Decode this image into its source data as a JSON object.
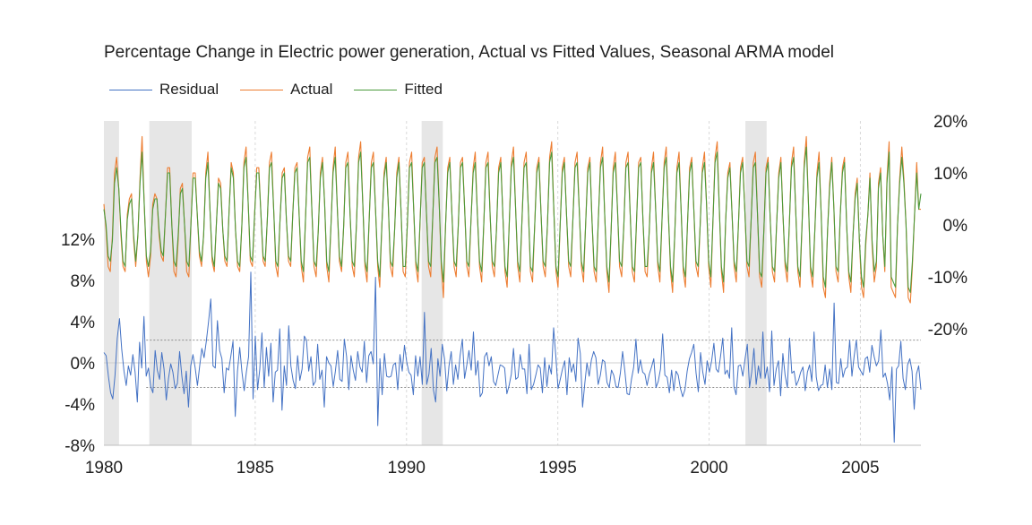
{
  "chart_data": {
    "type": "line",
    "title": "Percentage Change in Electric power generation, Actual vs Fitted Values, Seasonal ARMA model",
    "x_range": [
      1980,
      2007
    ],
    "x_ticks": [
      "1980",
      "1985",
      "1990",
      "1995",
      "2000",
      "2005"
    ],
    "left_axis": {
      "ticks": [
        "-8%",
        "-4%",
        "0%",
        "4%",
        "8%",
        "12%"
      ],
      "values": [
        -8,
        -4,
        0,
        4,
        8,
        12
      ],
      "range": [
        -8,
        12
      ]
    },
    "right_axis": {
      "ticks": [
        "-20%",
        "-10%",
        "0%",
        "10%",
        "20%"
      ],
      "values": [
        -20,
        -10,
        0,
        10,
        20
      ],
      "range": [
        -20,
        20
      ]
    },
    "recessions": [
      [
        1980.0,
        1980.5
      ],
      [
        1981.5,
        1982.9
      ],
      [
        1990.5,
        1991.2
      ],
      [
        2001.2,
        2001.9
      ]
    ],
    "residual_bands": [
      2.2,
      -2.4
    ],
    "legend_position": "top-left",
    "series": [
      {
        "name": "Residual",
        "axis": "left",
        "color": "#4472c4",
        "values": [
          1.0,
          0.7,
          -1.3,
          -2.9,
          -3.5,
          -1.2,
          2.4,
          4.3,
          1.3,
          -0.8,
          -2.2,
          -0.3,
          -1.2,
          0.8,
          -0.9,
          -3.8,
          2.0,
          -0.5,
          4.5,
          -1.3,
          -0.5,
          -2.3,
          -2.9,
          1.2,
          -0.7,
          -1.6,
          1.0,
          -0.6,
          -3.6,
          -1.5,
          -0.1,
          -0.9,
          -2.5,
          -2.0,
          1.1,
          -1.3,
          -3.0,
          -0.8,
          -4.3,
          -0.3,
          0.8,
          -0.5,
          -2.2,
          -0.3,
          1.4,
          0.5,
          2.1,
          4.0,
          6.2,
          -0.3,
          -0.5,
          4.1,
          1.2,
          0.4,
          -2.9,
          -0.5,
          -0.7,
          0.6,
          2.1,
          -5.2,
          -0.8,
          1.5,
          -0.9,
          -2.7,
          -0.9,
          0.6,
          8.8,
          -3.5,
          2.6,
          -2.6,
          -0.6,
          2.9,
          -2.4,
          1.5,
          -1.3,
          1.9,
          -3.8,
          -0.9,
          -0.7,
          3.3,
          -4.6,
          -0.3,
          -2.2,
          3.6,
          -0.3,
          -1.7,
          -2.5,
          0.7,
          -1.7,
          -0.6,
          2.6,
          2.2,
          -0.8,
          0.6,
          -2.2,
          -1.8,
          1.8,
          -1.6,
          -0.7,
          -4.3,
          0.6,
          0.0,
          -0.3,
          -2.3,
          -0.8,
          1.2,
          -1.6,
          -1.8,
          2.3,
          0.6,
          -2.6,
          0.7,
          -0.7,
          -1.7,
          1.1,
          -0.4,
          -0.9,
          2.1,
          -1.9,
          0.7,
          1.1,
          -0.1,
          8.3,
          -6.1,
          0.4,
          -3.1,
          0.9,
          -1.3,
          -1.4,
          -1.3,
          -0.2,
          0.0,
          -2.6,
          0.8,
          -0.8,
          1.7,
          0.1,
          -0.9,
          -1.2,
          -3.1,
          0.7,
          -1.3,
          0.6,
          -2.1,
          4.9,
          -2.1,
          -1.1,
          1.4,
          -2.6,
          -3.8,
          0.4,
          -1.3,
          1.8,
          0.4,
          -2.7,
          -0.3,
          1.1,
          -2.1,
          -0.2,
          -1.6,
          0.7,
          2.3,
          -1.5,
          -0.2,
          1.2,
          -0.7,
          3.0,
          -1.2,
          0.2,
          -3.3,
          -2.9,
          0.6,
          1.0,
          -0.3,
          0.6,
          -1.8,
          -2.2,
          -1.2,
          -0.2,
          -0.3,
          -0.5,
          -3.0,
          -2.2,
          -1.1,
          1.4,
          -1.6,
          -1.4,
          0.8,
          -0.6,
          -0.6,
          -3.0,
          1.8,
          -2.6,
          -2.1,
          -1.2,
          -0.2,
          -0.5,
          -2.9,
          0.5,
          -2.3,
          -0.2,
          -1.1,
          3.4,
          0.6,
          -2.5,
          -1.6,
          -0.6,
          0.2,
          -3.1,
          0.5,
          -0.9,
          -0.1,
          -1.8,
          2.4,
          0.9,
          -4.3,
          -2.0,
          0.0,
          -1.3,
          0.3,
          1.1,
          0.5,
          -2.1,
          -1.2,
          0.3,
          0.1,
          -1.9,
          -2.4,
          -0.7,
          -1.2,
          -2.3,
          -2.4,
          -1.0,
          1.1,
          -0.8,
          -3.0,
          -3.1,
          -1.6,
          -0.4,
          2.3,
          -1.0,
          0.3,
          -0.9,
          -1.1,
          -2.2,
          -1.1,
          -0.4,
          0.4,
          -2.4,
          -1.8,
          -0.6,
          2.8,
          -1.2,
          -1.4,
          -2.9,
          -0.7,
          -2.7,
          -0.8,
          -1.2,
          -2.5,
          -3.3,
          -2.6,
          -0.8,
          0.4,
          1.0,
          1.8,
          -1.0,
          -2.8,
          1.0,
          -0.9,
          -2.1,
          0.2,
          -0.9,
          0.2,
          1.9,
          -0.6,
          -0.9,
          0.6,
          2.4,
          -1.1,
          -0.7,
          -1.5,
          3.4,
          -2.3,
          -3.1,
          -0.3,
          -0.2,
          -1.3,
          0.4,
          1.8,
          -2.4,
          -0.9,
          1.4,
          -2.1,
          -0.3,
          -1.5,
          3.0,
          -1.5,
          -0.4,
          -2.8,
          3.1,
          -2.2,
          -0.6,
          0.2,
          -3.2,
          0.9,
          -1.2,
          -2.4,
          2.4,
          -1.0,
          -0.8,
          -2.2,
          -1.7,
          -0.9,
          -0.4,
          -2.7,
          -0.9,
          -0.2,
          -1.8,
          3.0,
          -1.4,
          -2.7,
          -2.2,
          -2.1,
          -0.2,
          -2.4,
          -0.6,
          -2.6,
          5.8,
          -1.9,
          -2.0,
          0.4,
          -1.4,
          -0.6,
          -0.4,
          2.2,
          -1.3,
          0.6,
          2.2,
          -0.4,
          -0.8,
          -1.2,
          0.4,
          0.6,
          -0.9,
          1.7,
          0.6,
          -0.3,
          0.2,
          3.2,
          -1.4,
          -1.0,
          -2.0,
          -3.6,
          -0.4,
          -7.7,
          -0.6,
          -0.3,
          2.1,
          -1.5,
          -2.6,
          -0.2,
          0.4,
          -0.8,
          -4.5,
          -1.1,
          -0.3,
          -2.6
        ]
      },
      {
        "name": "Actual",
        "axis": "right",
        "color": "#ed7d31",
        "values": [
          4,
          -1,
          -8,
          -9,
          -2,
          10,
          13,
          7,
          -2,
          -8,
          -9,
          2,
          5,
          6,
          -3,
          -8,
          -2,
          9,
          17,
          4,
          -7,
          -10,
          -6,
          4,
          6,
          5,
          -2,
          -6,
          -7,
          2,
          11,
          11,
          0,
          -9,
          -10,
          -3,
          7,
          8,
          0,
          -9,
          -10,
          0,
          10,
          10,
          2,
          -6,
          -8,
          -2,
          10,
          14,
          3,
          -7,
          -9,
          0,
          9,
          8,
          -1,
          -7,
          -8,
          3,
          12,
          10,
          -1,
          -8,
          -9,
          0,
          12,
          15,
          4,
          -7,
          -8,
          2,
          11,
          11,
          2,
          -7,
          -8,
          1,
          12,
          14,
          3,
          -8,
          -10,
          1,
          10,
          11,
          1,
          -7,
          -8,
          2,
          11,
          12,
          2,
          -8,
          -11,
          1,
          13,
          15,
          3,
          -8,
          -10,
          -1,
          10,
          13,
          4,
          -8,
          -11,
          0,
          11,
          15,
          3,
          -7,
          -9,
          0,
          12,
          14,
          2,
          -8,
          -10,
          0,
          13,
          16,
          4,
          -8,
          -11,
          1,
          12,
          14,
          3,
          -8,
          -12,
          0,
          10,
          13,
          4,
          -8,
          -10,
          -1,
          10,
          13,
          3,
          -9,
          -10,
          0,
          12,
          14,
          3,
          -8,
          -11,
          1,
          12,
          13,
          2,
          -8,
          -10,
          2,
          13,
          15,
          4,
          -8,
          -14,
          0,
          11,
          13,
          2,
          -8,
          -10,
          0,
          12,
          13,
          3,
          -8,
          -10,
          1,
          11,
          14,
          2,
          -8,
          -11,
          0,
          12,
          14,
          2,
          -8,
          -10,
          -1,
          11,
          13,
          2,
          -9,
          -12,
          0,
          12,
          15,
          3,
          -8,
          -11,
          1,
          12,
          14,
          3,
          -9,
          -11,
          0,
          11,
          13,
          2,
          -8,
          -10,
          0,
          13,
          16,
          3,
          -9,
          -12,
          0,
          11,
          13,
          2,
          -8,
          -10,
          1,
          12,
          14,
          3,
          -8,
          -11,
          0,
          11,
          13,
          1,
          -9,
          -11,
          1,
          12,
          15,
          2,
          -9,
          -13,
          -1,
          11,
          14,
          3,
          -8,
          -10,
          0,
          12,
          14,
          2,
          -9,
          -11,
          1,
          12,
          13,
          1,
          -9,
          -10,
          -1,
          11,
          14,
          3,
          -8,
          -11,
          1,
          12,
          15,
          2,
          -9,
          -13,
          -2,
          11,
          14,
          3,
          -9,
          -12,
          0,
          11,
          13,
          3,
          -8,
          -10,
          0,
          11,
          14,
          4,
          -8,
          -12,
          1,
          13,
          16,
          3,
          -9,
          -13,
          1,
          10,
          12,
          2,
          -8,
          -11,
          0,
          11,
          13,
          3,
          -8,
          -10,
          1,
          12,
          14,
          2,
          -10,
          -12,
          -1,
          11,
          13,
          1,
          -9,
          -11,
          0,
          10,
          13,
          2,
          -8,
          -11,
          0,
          12,
          15,
          3,
          -9,
          -12,
          0,
          12,
          17,
          4,
          -9,
          -12,
          -1,
          10,
          14,
          2,
          -12,
          -14,
          -1,
          8,
          13,
          3,
          -9,
          -11,
          2,
          11,
          13,
          0,
          -10,
          -13,
          -2,
          6,
          9,
          -3,
          -12,
          -14,
          -4,
          2,
          10,
          -4,
          -11,
          -8,
          8,
          11,
          -2,
          -9,
          9,
          16,
          -12,
          -13,
          -14,
          0,
          9,
          15,
          9,
          0,
          -14,
          -15,
          -8,
          2,
          12,
          3,
          3
        ]
      },
      {
        "name": "Fitted",
        "axis": "right",
        "color": "#4a9a3b",
        "values": [
          3,
          0,
          -6,
          -7,
          -3,
          8,
          11,
          7,
          -1,
          -7,
          -8,
          1,
          4,
          5,
          -2,
          -7,
          -2,
          8,
          14,
          4,
          -6,
          -8,
          -5,
          3,
          5,
          5,
          -1,
          -5,
          -6,
          2,
          10,
          10,
          0,
          -7,
          -8,
          -2,
          6,
          7,
          0,
          -7,
          -8,
          0,
          9,
          9,
          2,
          -5,
          -7,
          -2,
          9,
          12,
          3,
          -6,
          -8,
          0,
          8,
          7,
          -1,
          -6,
          -7,
          3,
          11,
          9,
          -1,
          -7,
          -8,
          0,
          11,
          13,
          4,
          -6,
          -7,
          2,
          10,
          10,
          2,
          -6,
          -7,
          1,
          11,
          12,
          3,
          -7,
          -8,
          1,
          9,
          10,
          1,
          -6,
          -7,
          2,
          10,
          11,
          2,
          -7,
          -9,
          1,
          12,
          13,
          3,
          -7,
          -8,
          -1,
          9,
          12,
          4,
          -7,
          -9,
          0,
          10,
          13,
          3,
          -6,
          -8,
          0,
          11,
          12,
          2,
          -7,
          -8,
          0,
          12,
          14,
          4,
          -7,
          -9,
          1,
          11,
          12,
          3,
          -7,
          -10,
          0,
          9,
          12,
          4,
          -7,
          -8,
          -1,
          9,
          12,
          3,
          -8,
          -8,
          0,
          11,
          12,
          3,
          -7,
          -9,
          1,
          11,
          12,
          2,
          -7,
          -8,
          2,
          12,
          13,
          4,
          -7,
          -11,
          0,
          10,
          12,
          2,
          -7,
          -8,
          0,
          11,
          12,
          3,
          -7,
          -8,
          1,
          10,
          12,
          2,
          -7,
          -9,
          0,
          11,
          12,
          2,
          -7,
          -8,
          -1,
          10,
          12,
          2,
          -8,
          -10,
          0,
          11,
          13,
          3,
          -7,
          -9,
          1,
          11,
          12,
          3,
          -8,
          -9,
          0,
          10,
          12,
          2,
          -7,
          -8,
          0,
          12,
          14,
          3,
          -8,
          -10,
          0,
          10,
          12,
          2,
          -7,
          -8,
          1,
          11,
          12,
          3,
          -7,
          -9,
          0,
          10,
          12,
          1,
          -8,
          -9,
          1,
          11,
          13,
          2,
          -8,
          -11,
          -1,
          10,
          12,
          3,
          -7,
          -8,
          0,
          11,
          12,
          2,
          -8,
          -9,
          1,
          11,
          12,
          1,
          -8,
          -8,
          -1,
          10,
          12,
          3,
          -7,
          -9,
          1,
          11,
          13,
          2,
          -8,
          -11,
          -2,
          10,
          12,
          3,
          -8,
          -10,
          0,
          10,
          12,
          3,
          -7,
          -8,
          0,
          10,
          12,
          4,
          -7,
          -10,
          1,
          12,
          14,
          3,
          -8,
          -11,
          1,
          9,
          11,
          2,
          -7,
          -9,
          0,
          10,
          12,
          3,
          -7,
          -8,
          1,
          11,
          12,
          2,
          -9,
          -10,
          -1,
          10,
          12,
          1,
          -8,
          -9,
          0,
          9,
          12,
          2,
          -7,
          -9,
          0,
          11,
          13,
          3,
          -8,
          -10,
          0,
          11,
          15,
          4,
          -8,
          -10,
          -1,
          9,
          12,
          2,
          -10,
          -12,
          -1,
          7,
          12,
          3,
          -8,
          -9,
          2,
          10,
          12,
          0,
          -9,
          -11,
          -2,
          5,
          8,
          -3,
          -10,
          -12,
          -3,
          2,
          9,
          -3,
          -9,
          -7,
          7,
          10,
          -2,
          -8,
          8,
          14,
          -10,
          -11,
          -12,
          0,
          8,
          13,
          8,
          0,
          -12,
          -13,
          -7,
          2,
          10,
          3,
          6
        ]
      }
    ]
  }
}
